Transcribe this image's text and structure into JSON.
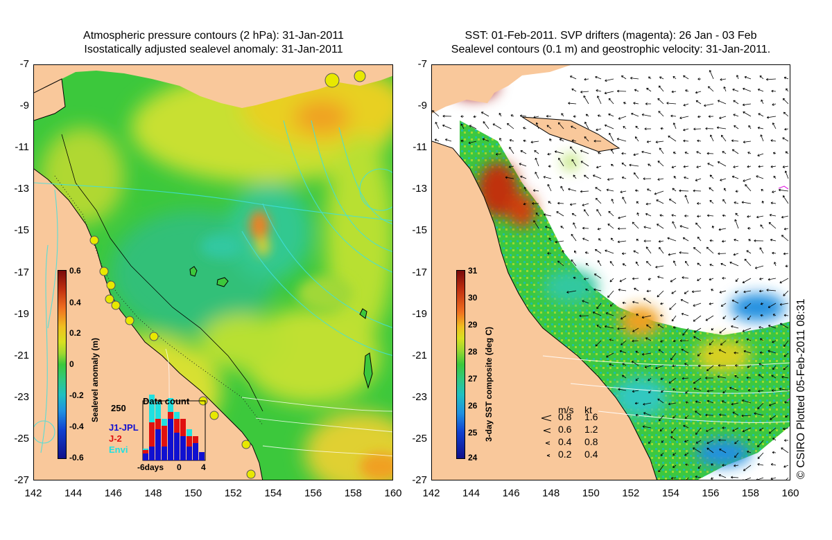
{
  "left_panel": {
    "title_line1": "Atmospheric pressure contours (2 hPa): 31-Jan-2011",
    "title_line2": "Isostatically adjusted sealevel anomaly: 31-Jan-2011",
    "colorbar": {
      "label": "Sealevel anomaly (m)",
      "ticks": [
        "0.6",
        "0.4",
        "0.2",
        "0",
        "-0.2",
        "-0.4",
        "-0.6"
      ],
      "range": [
        -0.6,
        0.6
      ]
    },
    "inset": {
      "title": "Data count",
      "y_tick": "250",
      "series": [
        "J1-JPL",
        "J-2",
        "Envi"
      ],
      "series_colors": [
        "#1010d0",
        "#e01010",
        "#20e0e0"
      ],
      "x_ticks": [
        "-6days",
        "0",
        "4"
      ]
    }
  },
  "right_panel": {
    "title_line1": "SST: 01-Feb-2011. SVP drifters (magenta): 26 Jan - 03 Feb",
    "title_line2": "Sealevel contours (0.1 m) and geostrophic velocity: 31-Jan-2011.",
    "colorbar": {
      "label": "3-day SST composite (deg C)",
      "ticks": [
        "31",
        "30",
        "29",
        "28",
        "27",
        "26",
        "25",
        "24"
      ],
      "range": [
        24,
        31
      ]
    },
    "velocity_legend": {
      "header_ms": "m/s",
      "header_kt": "kt",
      "rows": [
        {
          "ms": "0.8",
          "kt": "1.6"
        },
        {
          "ms": "0.6",
          "kt": "1.2"
        },
        {
          "ms": "0.4",
          "kt": "0.8"
        },
        {
          "ms": "0.2",
          "kt": "0.4"
        }
      ]
    }
  },
  "axes": {
    "y_ticks": [
      "-7",
      "-9",
      "-11",
      "-13",
      "-15",
      "-17",
      "-19",
      "-21",
      "-23",
      "-25",
      "-27"
    ],
    "x_ticks": [
      "142",
      "144",
      "146",
      "148",
      "150",
      "152",
      "154",
      "156",
      "158",
      "160"
    ]
  },
  "copyright": "© CSIRO Plotted 05-Feb-2011 08:31",
  "colors": {
    "land": "#f9c89b",
    "ocean_green": "#3cc83c",
    "no_data": "#ffffff"
  }
}
